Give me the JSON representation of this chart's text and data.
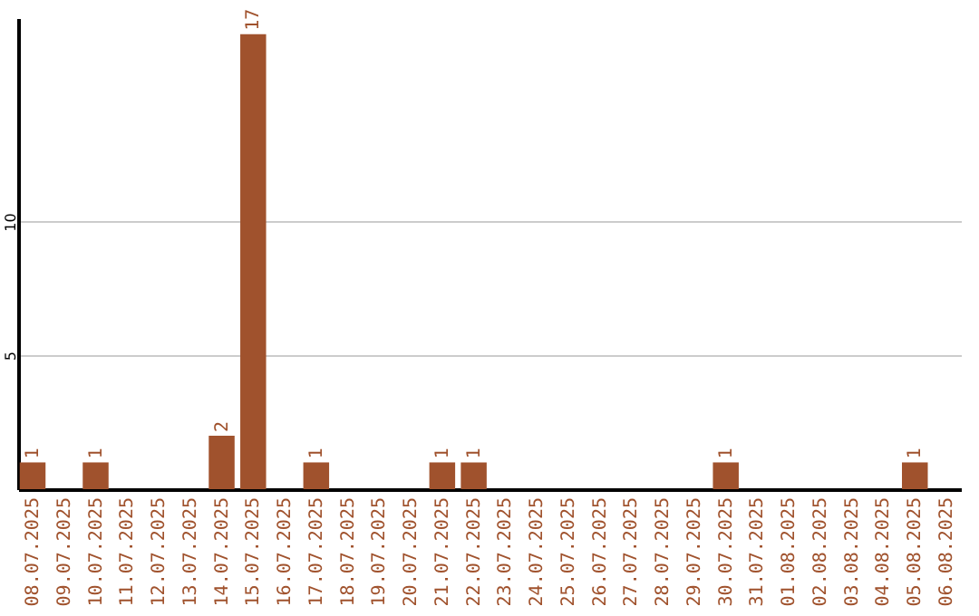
{
  "chart_data": {
    "type": "bar",
    "categories": [
      "08.07.2025",
      "09.07.2025",
      "10.07.2025",
      "11.07.2025",
      "12.07.2025",
      "13.07.2025",
      "14.07.2025",
      "15.07.2025",
      "16.07.2025",
      "17.07.2025",
      "18.07.2025",
      "19.07.2025",
      "20.07.2025",
      "21.07.2025",
      "22.07.2025",
      "23.07.2025",
      "24.07.2025",
      "25.07.2025",
      "26.07.2025",
      "27.07.2025",
      "28.07.2025",
      "29.07.2025",
      "30.07.2025",
      "31.07.2025",
      "01.08.2025",
      "02.08.2025",
      "03.08.2025",
      "04.08.2025",
      "05.08.2025",
      "06.08.2025"
    ],
    "values": [
      1,
      0,
      1,
      0,
      0,
      0,
      2,
      17,
      0,
      1,
      0,
      0,
      0,
      1,
      1,
      0,
      0,
      0,
      0,
      0,
      0,
      0,
      1,
      0,
      0,
      0,
      0,
      0,
      1,
      0
    ],
    "value_labels": [
      "1",
      null,
      "1",
      null,
      null,
      null,
      "2",
      "17",
      null,
      "1",
      null,
      null,
      null,
      "1",
      "1",
      null,
      null,
      null,
      null,
      null,
      null,
      null,
      "1",
      null,
      null,
      null,
      null,
      null,
      "1",
      null
    ],
    "color": "#a0522d",
    "ylim": [
      0,
      17.6
    ],
    "yticks": [
      5,
      10
    ],
    "grid": "y"
  }
}
